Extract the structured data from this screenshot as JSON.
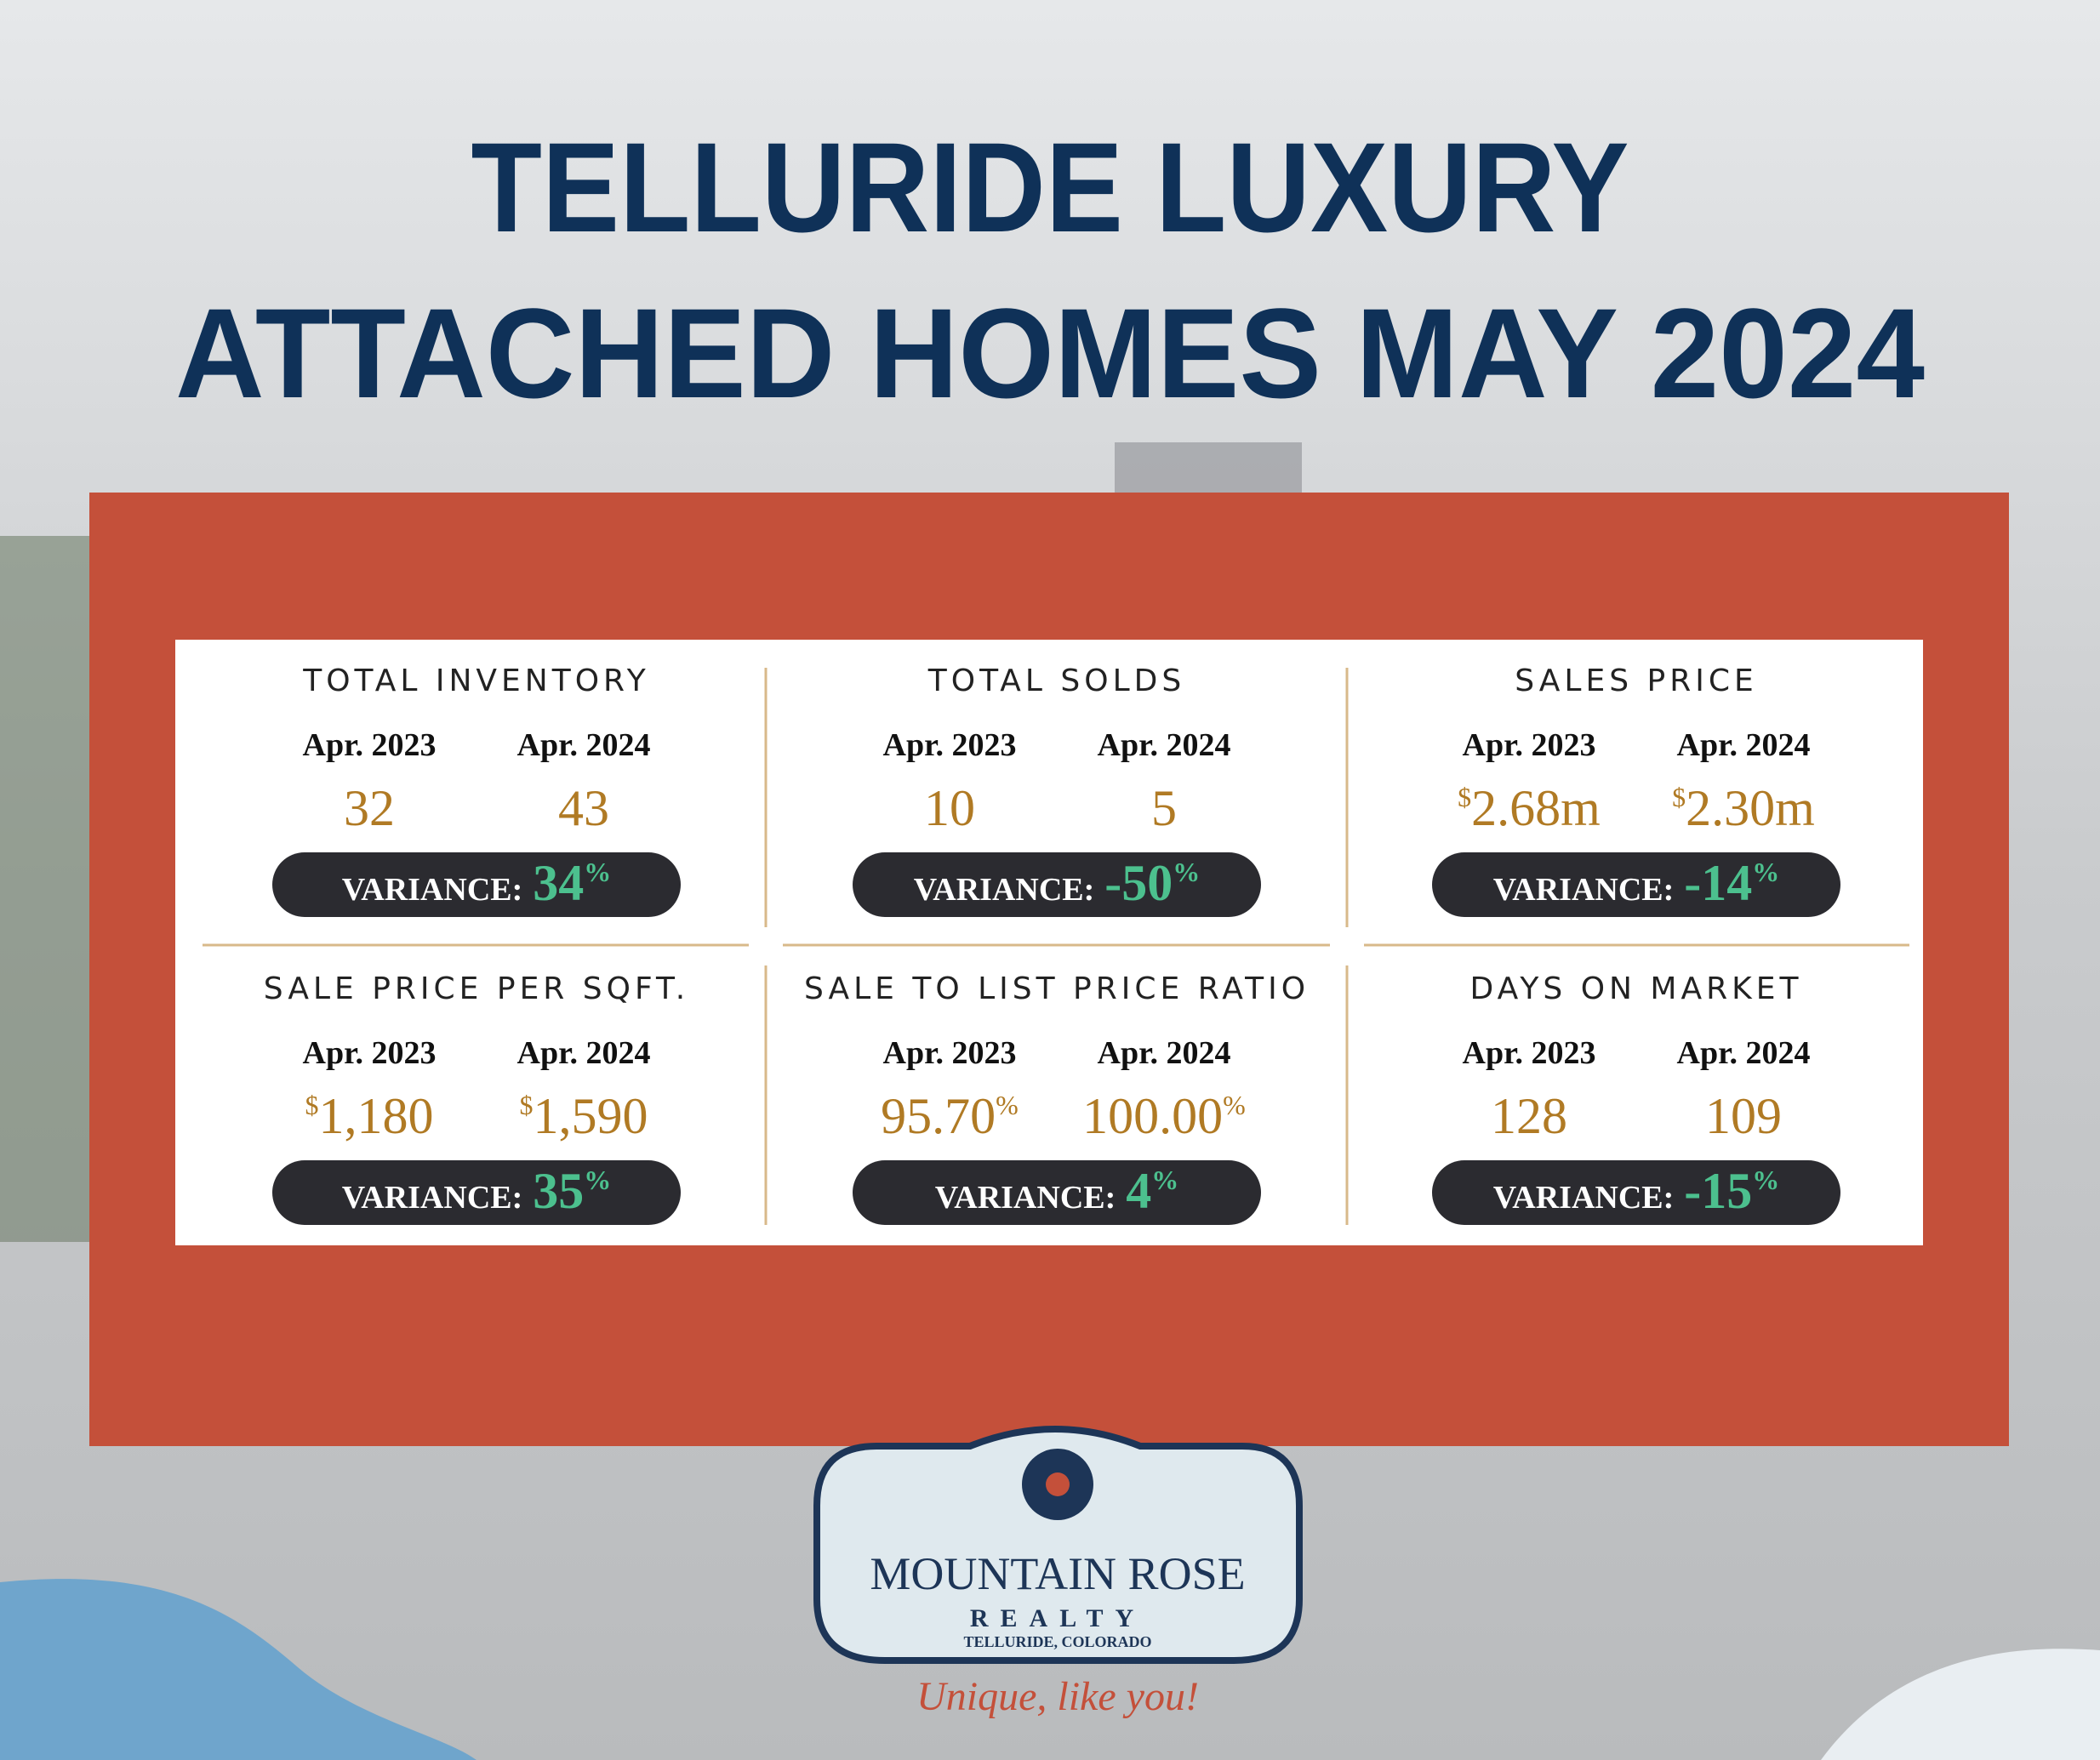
{
  "header": {
    "title_lines": [
      "TELLURIDE LUXURY",
      "ATTACHED HOMES MAY 2024"
    ]
  },
  "cards": [
    {
      "title": "TOTAL INVENTORY",
      "columns": [
        {
          "label": "Apr. 2023",
          "pre": null,
          "value": "32",
          "post": null
        },
        {
          "label": "Apr. 2024",
          "pre": null,
          "value": "43",
          "post": null
        }
      ],
      "variance": {
        "label": "VARIANCE:",
        "value": "34",
        "post": "%"
      }
    },
    {
      "title": "TOTAL SOLDS",
      "columns": [
        {
          "label": "Apr. 2023",
          "pre": null,
          "value": "10",
          "post": null
        },
        {
          "label": "Apr. 2024",
          "pre": null,
          "value": "5",
          "post": null
        }
      ],
      "variance": {
        "label": "VARIANCE:",
        "value": "-50",
        "post": "%"
      }
    },
    {
      "title": "SALES PRICE",
      "columns": [
        {
          "label": "Apr. 2023",
          "pre": "$",
          "value": "2.68m",
          "post": null
        },
        {
          "label": "Apr. 2024",
          "pre": "$",
          "value": "2.30m",
          "post": null
        }
      ],
      "variance": {
        "label": "VARIANCE:",
        "value": "-14",
        "post": "%"
      }
    },
    {
      "title": "SALE PRICE PER SQFT.",
      "columns": [
        {
          "label": "Apr. 2023",
          "pre": "$",
          "value": "1,180",
          "post": null
        },
        {
          "label": "Apr. 2024",
          "pre": "$",
          "value": "1,590",
          "post": null
        }
      ],
      "variance": {
        "label": "VARIANCE:",
        "value": "35",
        "post": "%"
      }
    },
    {
      "title": "SALE TO LIST PRICE RATIO",
      "columns": [
        {
          "label": "Apr. 2023",
          "pre": null,
          "value": "95.70",
          "post": "%"
        },
        {
          "label": "Apr. 2024",
          "pre": null,
          "value": "100.00",
          "post": "%"
        }
      ],
      "variance": {
        "label": "VARIANCE:",
        "value": "4",
        "post": "%"
      }
    },
    {
      "title": "DAYS ON MARKET",
      "columns": [
        {
          "label": "Apr. 2023",
          "pre": null,
          "value": "128",
          "post": null
        },
        {
          "label": "Apr. 2024",
          "pre": null,
          "value": "109",
          "post": null
        }
      ],
      "variance": {
        "label": "VARIANCE:",
        "value": "-15",
        "post": "%"
      }
    }
  ],
  "logo": {
    "name": "MOUNTAIN ROSE",
    "sub": "REALTY",
    "place": "TELLURIDE, COLORADO",
    "tagline": "Unique, like you!"
  }
}
